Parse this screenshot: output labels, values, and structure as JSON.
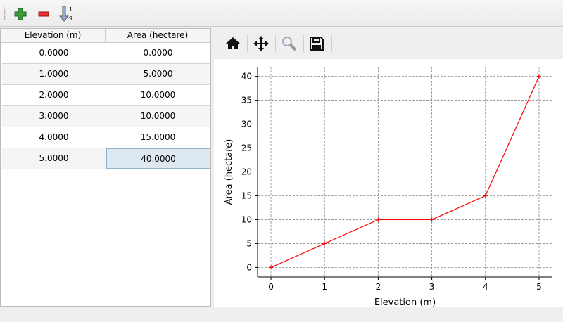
{
  "toolbar": {
    "buttons": [
      {
        "name": "add-row",
        "icon": "plus-icon"
      },
      {
        "name": "remove-row",
        "icon": "minus-icon"
      },
      {
        "name": "sort",
        "icon": "sort-ascending-icon",
        "glyph_top": "1",
        "glyph_bottom": "9"
      }
    ]
  },
  "table": {
    "columns": [
      "Elevation (m)",
      "Area (hectare)"
    ],
    "rows": [
      [
        "0.0000",
        "0.0000"
      ],
      [
        "1.0000",
        "5.0000"
      ],
      [
        "2.0000",
        "10.0000"
      ],
      [
        "3.0000",
        "10.0000"
      ],
      [
        "4.0000",
        "15.0000"
      ],
      [
        "5.0000",
        "40.0000"
      ]
    ],
    "selected_cell": [
      5,
      1
    ]
  },
  "nav_toolbar": {
    "buttons": [
      "home-icon",
      "pan-icon",
      "zoom-icon",
      "save-icon"
    ]
  },
  "chart_data": {
    "type": "line",
    "x": [
      0,
      1,
      2,
      3,
      4,
      5
    ],
    "series": [
      {
        "values": [
          0,
          5,
          10,
          10,
          15,
          40
        ],
        "color": "#ff0000",
        "marker": "+"
      }
    ],
    "xlabel": "Elevation (m)",
    "ylabel": "Area (hectare)",
    "xlim": [
      -0.25,
      5.25
    ],
    "ylim": [
      -2,
      42
    ],
    "xticks": [
      0,
      1,
      2,
      3,
      4,
      5
    ],
    "yticks": [
      0,
      5,
      10,
      15,
      20,
      25,
      30,
      35,
      40
    ],
    "grid": true
  }
}
